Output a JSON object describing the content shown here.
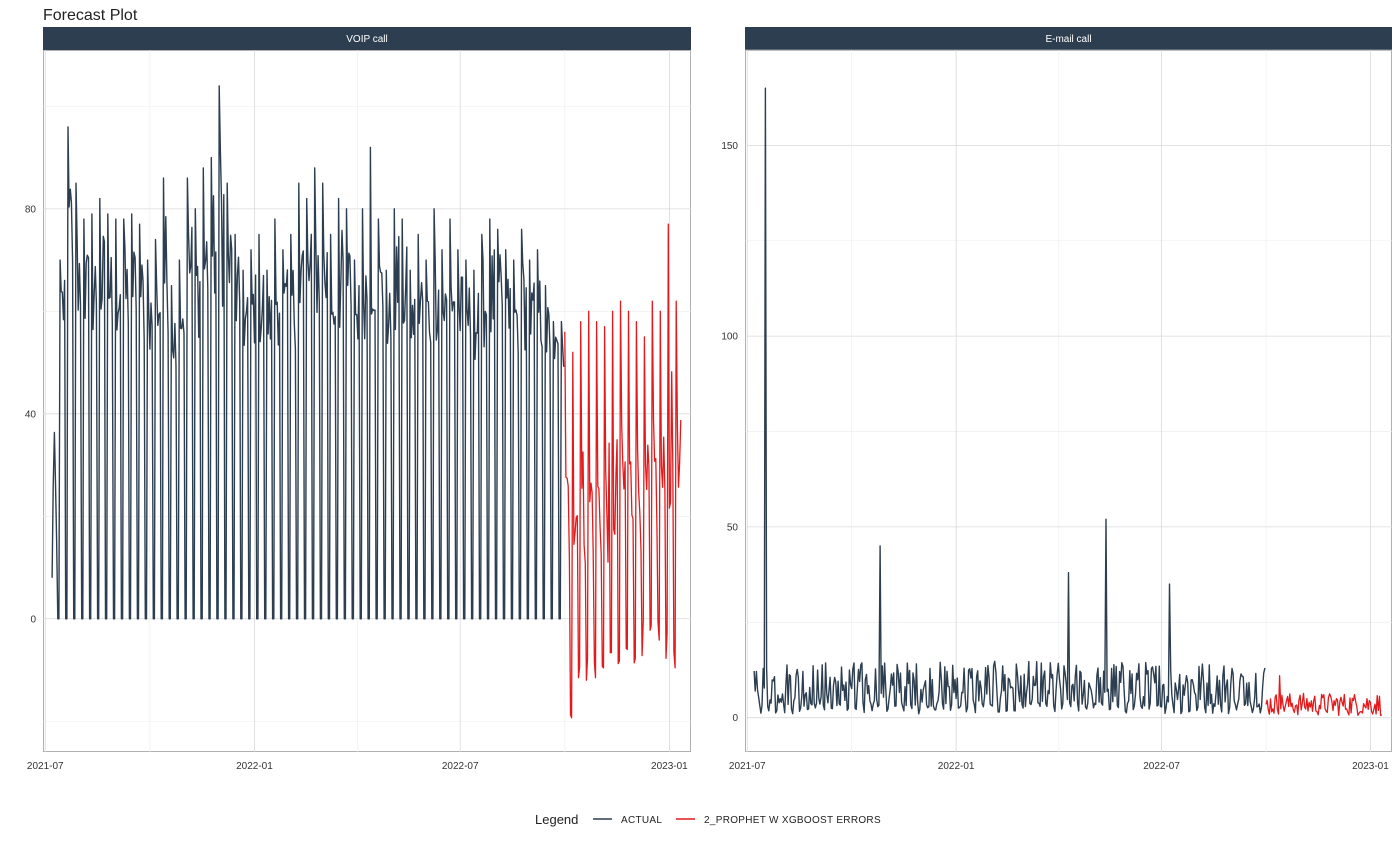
{
  "title": "Forecast Plot",
  "colors": {
    "actual": "#2c3e50",
    "forecast": "#e31a1c",
    "strip": "#2c3e50",
    "grid": "#d9d9d9",
    "border": "#b0b0b0"
  },
  "chart_data": {
    "type": "line",
    "title": "Forecast Plot",
    "grid": true,
    "legend": {
      "title": "Legend",
      "placement": "bottom",
      "entries": [
        "ACTUAL",
        "2_PROPHET W XGBOOST ERRORS"
      ]
    },
    "panels": [
      {
        "name": "VOIP call",
        "x_range": [
          "2021-06-29",
          "2023-01-20"
        ],
        "x_ticks": [
          "2021-07",
          "2022-01",
          "2022-07",
          "2023-01"
        ],
        "y_range": [
          -26,
          111
        ],
        "y_ticks": [
          0,
          40,
          80
        ],
        "series": [
          {
            "name": "ACTUAL",
            "start": "2021-07-07",
            "end": "2022-09-30",
            "baseline": 0,
            "weekly_peaks": [
              8,
              70,
              96,
              85,
              78,
              79,
              82,
              79,
              78,
              78,
              79,
              77,
              70,
              74,
              86,
              65,
              70,
              86,
              80,
              88,
              90,
              104,
              85,
              75,
              68,
              72,
              75,
              68,
              78,
              72,
              75,
              85,
              82,
              88,
              85,
              75,
              82,
              80,
              70,
              80,
              92,
              78,
              68,
              80,
              78,
              68,
              75,
              70,
              80,
              72,
              78,
              72,
              70,
              68,
              75,
              78,
              76,
              72,
              70,
              76,
              70,
              72,
              65,
              58,
              58,
              47
            ],
            "weekly_lows": [
              58,
              52,
              48,
              46,
              47,
              46,
              45,
              46,
              45,
              45,
              46,
              44,
              45,
              46,
              45,
              44,
              47,
              46,
              46,
              47,
              48,
              46,
              47,
              46,
              45,
              46,
              45,
              46,
              45,
              46,
              45,
              46,
              47,
              46,
              45,
              46,
              45,
              46,
              47,
              46,
              45,
              46,
              45,
              46,
              45,
              46,
              45,
              46,
              45,
              46,
              45,
              44,
              45,
              44,
              45,
              44,
              44,
              45,
              44,
              44,
              45,
              44,
              44,
              45,
              44,
              40
            ]
          },
          {
            "name": "2_PROPHET W XGBOOST ERRORS",
            "start": "2022-10-01",
            "end": "2023-01-11",
            "weekly_peaks": [
              56,
              52,
              58,
              60,
              58,
              57,
              60,
              62,
              60,
              58,
              55,
              62,
              60,
              77,
              62
            ],
            "weekly_lows": [
              -20,
              -12,
              -14,
              -15,
              -14,
              -13,
              -12,
              -10,
              -9,
              -8,
              -8,
              -7,
              -8,
              -10,
              -7
            ]
          }
        ]
      },
      {
        "name": "E-mail call",
        "x_range": [
          "2021-06-29",
          "2023-01-20"
        ],
        "x_ticks": [
          "2021-07",
          "2022-01",
          "2022-07",
          "2023-01"
        ],
        "y_range": [
          -9,
          175
        ],
        "y_ticks": [
          0,
          50,
          100,
          150
        ],
        "series": [
          {
            "name": "ACTUAL",
            "start": "2021-07-07",
            "end": "2022-09-30",
            "baseline": 0,
            "mean": 7,
            "spikes": [
              {
                "date": "2021-07-08",
                "value": 7
              },
              {
                "date": "2021-07-17",
                "value": 165
              },
              {
                "date": "2021-10-26",
                "value": 45
              },
              {
                "date": "2022-04-10",
                "value": 38
              },
              {
                "date": "2022-05-13",
                "value": 52
              },
              {
                "date": "2022-07-08",
                "value": 35
              }
            ]
          },
          {
            "name": "2_PROPHET W XGBOOST ERRORS",
            "start": "2022-10-01",
            "end": "2023-01-11",
            "mean": 3.5,
            "max": 11,
            "min": 0
          }
        ]
      }
    ]
  }
}
